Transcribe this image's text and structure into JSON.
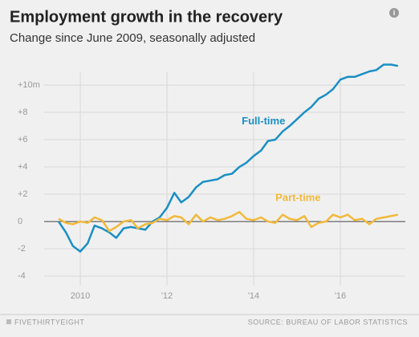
{
  "chart_data": {
    "type": "line",
    "title": "Employment growth in the recovery",
    "subtitle": "Change since June 2009, seasonally adjusted",
    "credit": "FIVETHIRTYEIGHT",
    "source": "SOURCE: BUREAU OF LABOR STATISTICS",
    "x": [
      2009.5,
      2009.67,
      2009.83,
      2010,
      2010.17,
      2010.33,
      2010.5,
      2010.67,
      2010.83,
      2011,
      2011.17,
      2011.33,
      2011.5,
      2011.67,
      2011.83,
      2012,
      2012.17,
      2012.33,
      2012.5,
      2012.67,
      2012.83,
      2013,
      2013.17,
      2013.33,
      2013.5,
      2013.67,
      2013.83,
      2014,
      2014.17,
      2014.33,
      2014.5,
      2014.67,
      2014.83,
      2015,
      2015.17,
      2015.33,
      2015.5,
      2015.67,
      2015.83,
      2016,
      2016.17,
      2016.33,
      2016.5,
      2016.67,
      2016.83,
      2017,
      2017.17,
      2017.33
    ],
    "series": [
      {
        "name": "Full-time",
        "color": "#1a8fc4",
        "values": [
          0,
          -0.8,
          -1.8,
          -2.2,
          -1.6,
          -0.3,
          -0.5,
          -0.8,
          -1.2,
          -0.5,
          -0.4,
          -0.5,
          -0.6,
          0,
          0.3,
          1.0,
          2.1,
          1.4,
          1.8,
          2.5,
          2.9,
          3.0,
          3.1,
          3.4,
          3.5,
          4.0,
          4.3,
          4.8,
          5.2,
          5.9,
          6.0,
          6.6,
          7.0,
          7.5,
          8.0,
          8.4,
          9.0,
          9.3,
          9.7,
          10.4,
          10.6,
          10.6,
          10.8,
          11.0,
          11.1,
          11.5,
          11.5,
          11.4
        ]
      },
      {
        "name": "Part-time",
        "color": "#f2b93b",
        "values": [
          0.2,
          -0.1,
          -0.2,
          0,
          -0.1,
          0.3,
          0.1,
          -0.7,
          -0.4,
          0,
          0.1,
          -0.5,
          -0.2,
          -0.1,
          0.2,
          0.1,
          0.4,
          0.3,
          -0.2,
          0.5,
          0,
          0.3,
          0.1,
          0.2,
          0.4,
          0.7,
          0.2,
          0.1,
          0.3,
          0,
          -0.1,
          0.5,
          0.2,
          0.1,
          0.4,
          -0.4,
          -0.1,
          0,
          0.5,
          0.3,
          0.5,
          0.1,
          0.2,
          -0.2,
          0.2,
          0.3,
          0.4,
          0.5
        ]
      }
    ],
    "xlim": [
      2008.5,
      2017.5
    ],
    "xticks": [
      {
        "value": 2010,
        "label": "2010"
      },
      {
        "value": 2012,
        "label": "'12"
      },
      {
        "value": 2014,
        "label": "'14"
      },
      {
        "value": 2016,
        "label": "'16"
      }
    ],
    "ylim": [
      -4.7,
      12
    ],
    "yticks": [
      {
        "value": 10,
        "label": "+10m"
      },
      {
        "value": 8,
        "label": "+8"
      },
      {
        "value": 6,
        "label": "+6"
      },
      {
        "value": 4,
        "label": "+4"
      },
      {
        "value": 2,
        "label": "+2"
      },
      0,
      -2,
      -4
    ],
    "grid": true
  }
}
